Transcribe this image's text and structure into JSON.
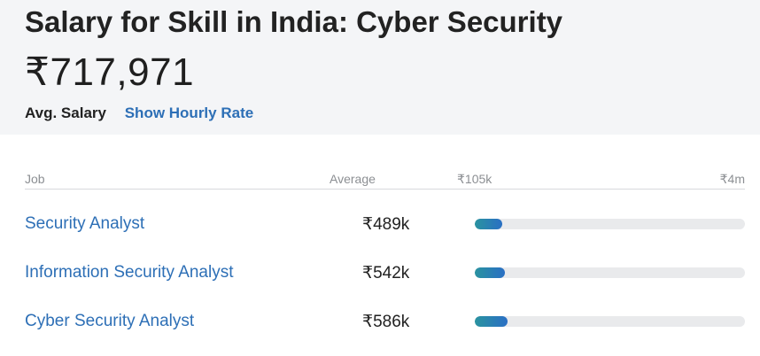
{
  "header": {
    "title": "Salary for Skill in India: Cyber Security",
    "salary": "₹717,971",
    "avg_label": "Avg. Salary",
    "hourly_link": "Show Hourly Rate"
  },
  "table": {
    "col_job": "Job",
    "col_average": "Average",
    "range_min": "₹105k",
    "range_max": "₹4m",
    "rows": [
      {
        "job": "Security Analyst",
        "average": "₹489k",
        "fill_fraction": 0.1
      },
      {
        "job": "Information Security Analyst",
        "average": "₹542k",
        "fill_fraction": 0.11
      },
      {
        "job": "Cyber Security Analyst",
        "average": "₹586k",
        "fill_fraction": 0.12
      }
    ]
  },
  "colors": {
    "link": "#2d6fb6",
    "bar_start": "#2a93a0",
    "bar_end": "#2a6fc4",
    "bar_track": "#e9eaec"
  }
}
